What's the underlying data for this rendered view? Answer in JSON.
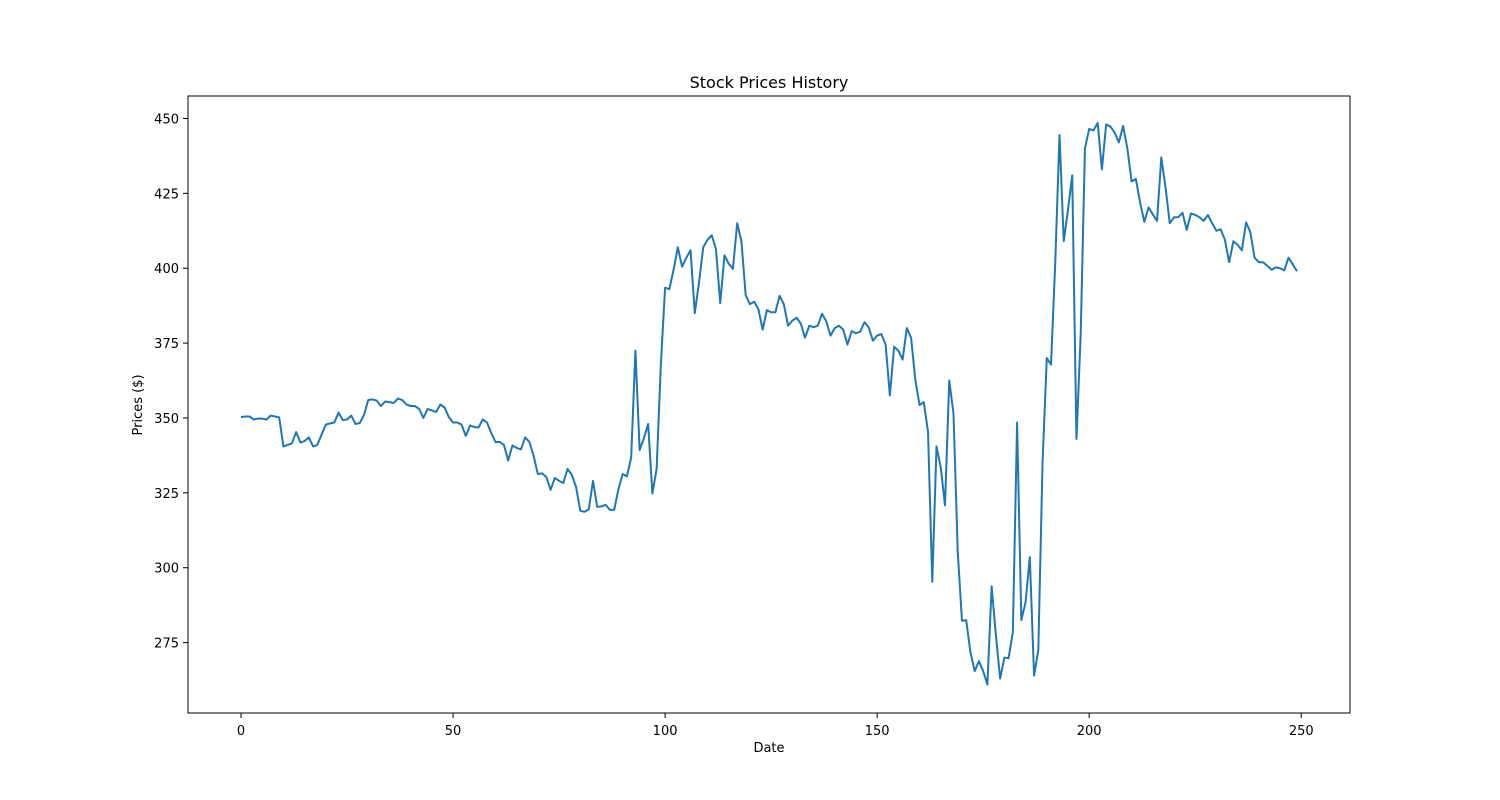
{
  "chart_data": {
    "type": "line",
    "title": "Stock Prices History",
    "xlabel": "Date",
    "ylabel": "Prices ($)",
    "xlim": [
      -12.5,
      261.5
    ],
    "ylim": [
      251.5,
      457.5
    ],
    "xticks": [
      0,
      50,
      100,
      150,
      200,
      250
    ],
    "yticks": [
      275,
      300,
      325,
      350,
      375,
      400,
      425,
      450
    ],
    "grid": false,
    "legend": "none",
    "line_color": "#1f77b4",
    "series": [
      {
        "values": [
          350.3,
          350.5,
          350.5,
          349.5,
          349.8,
          349.8,
          349.5,
          350.8,
          350.5,
          350.2,
          340.5,
          341.0,
          341.5,
          345.3,
          341.8,
          342.3,
          343.5,
          340.5,
          341.0,
          344.5,
          347.8,
          348.2,
          348.5,
          351.8,
          349.3,
          349.5,
          350.8,
          348.0,
          348.3,
          351.0,
          356.0,
          356.2,
          355.8,
          354.0,
          355.5,
          355.3,
          355.0,
          356.5,
          356.0,
          354.5,
          354.0,
          354.0,
          353.0,
          350.0,
          353.0,
          352.5,
          352.0,
          354.5,
          353.5,
          350.3,
          348.5,
          348.5,
          347.8,
          344.0,
          347.5,
          347.0,
          346.8,
          349.5,
          348.5,
          345.0,
          342.0,
          342.0,
          341.0,
          335.8,
          340.8,
          340.0,
          339.5,
          343.5,
          342.0,
          337.3,
          331.3,
          331.5,
          330.3,
          326.0,
          330.0,
          329.0,
          328.3,
          333.0,
          331.0,
          327.0,
          319.0,
          318.7,
          319.5,
          329.0,
          320.3,
          320.5,
          321.0,
          319.3,
          319.3,
          326.3,
          331.3,
          330.5,
          336.8,
          372.5,
          339.3,
          343.3,
          348.0,
          324.8,
          333.0,
          368.0,
          393.5,
          393.0,
          399.5,
          407.0,
          400.5,
          403.5,
          406.0,
          385.0,
          395.3,
          407.0,
          409.5,
          411.0,
          406.3,
          388.3,
          404.3,
          401.5,
          399.8,
          415.0,
          409.0,
          391.0,
          388.0,
          388.8,
          386.3,
          379.5,
          386.0,
          385.3,
          385.3,
          390.8,
          388.0,
          380.8,
          382.5,
          383.5,
          381.5,
          376.8,
          380.8,
          380.3,
          380.8,
          384.8,
          382.3,
          377.5,
          380.0,
          380.8,
          379.5,
          374.5,
          379.0,
          378.3,
          378.8,
          382.0,
          380.3,
          375.8,
          377.5,
          378.0,
          374.5,
          357.5,
          373.8,
          372.5,
          369.5,
          380.0,
          376.8,
          362.8,
          354.3,
          355.3,
          345.3,
          295.3,
          340.5,
          333.5,
          320.8,
          362.5,
          351.5,
          305.5,
          282.3,
          282.5,
          271.8,
          265.5,
          268.8,
          265.5,
          261.0,
          293.8,
          277.5,
          263.0,
          270.0,
          269.8,
          278.5,
          348.5,
          282.5,
          288.5,
          303.5,
          264.0,
          272.5,
          335.0,
          370.0,
          367.8,
          402.0,
          444.5,
          409.0,
          419.5,
          431.0,
          343.0,
          378.0,
          440.0,
          446.5,
          446.0,
          448.5,
          433.0,
          448.0,
          447.3,
          445.3,
          442.0,
          447.5,
          440.0,
          429.0,
          429.8,
          422.0,
          415.5,
          420.3,
          418.0,
          415.8,
          437.0,
          427.0,
          415.0,
          417.0,
          417.0,
          418.5,
          412.8,
          418.3,
          417.8,
          417.0,
          415.8,
          417.8,
          415.0,
          412.5,
          413.0,
          409.5,
          402.0,
          409.0,
          407.8,
          406.0,
          415.3,
          412.0,
          403.5,
          402.0,
          402.0,
          400.8,
          399.5,
          400.3,
          400.0,
          399.3,
          403.5,
          401.3,
          399.0
        ]
      }
    ]
  }
}
